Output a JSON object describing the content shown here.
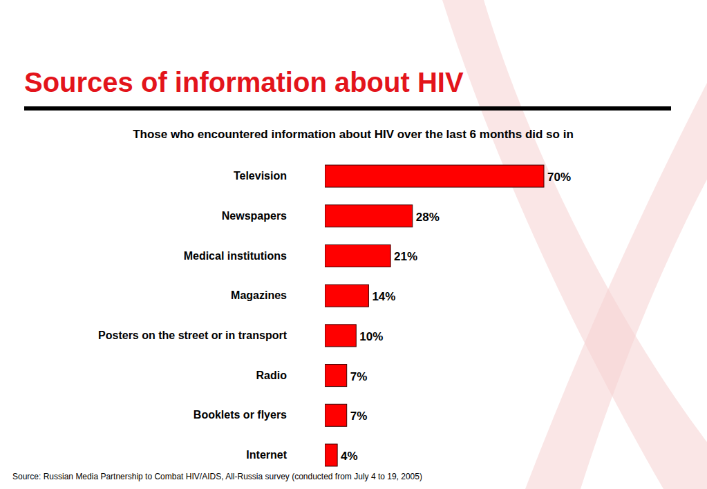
{
  "chart_data": {
    "type": "bar",
    "title": "Sources of information about HIV",
    "subtitle": "Those who encountered information about HIV over the last 6 months did so in",
    "source": "Source: Russian Media Partnership to Combat HIV/AIDS, All-Russia survey (conducted from July 4 to 19, 2005)",
    "orientation": "horizontal",
    "categories": [
      "Television",
      "Newspapers",
      "Medical institutions",
      "Magazines",
      "Posters on the street or in transport",
      "Radio",
      "Booklets or flyers",
      "Internet"
    ],
    "values": [
      70,
      28,
      21,
      14,
      10,
      7,
      7,
      4
    ],
    "value_labels": [
      "70%",
      "28%",
      "21%",
      "14%",
      "10%",
      "7%",
      "7%",
      "4%"
    ],
    "color": "#ff0000",
    "data_labels": true,
    "tick_labels": "y",
    "grid": false
  }
}
